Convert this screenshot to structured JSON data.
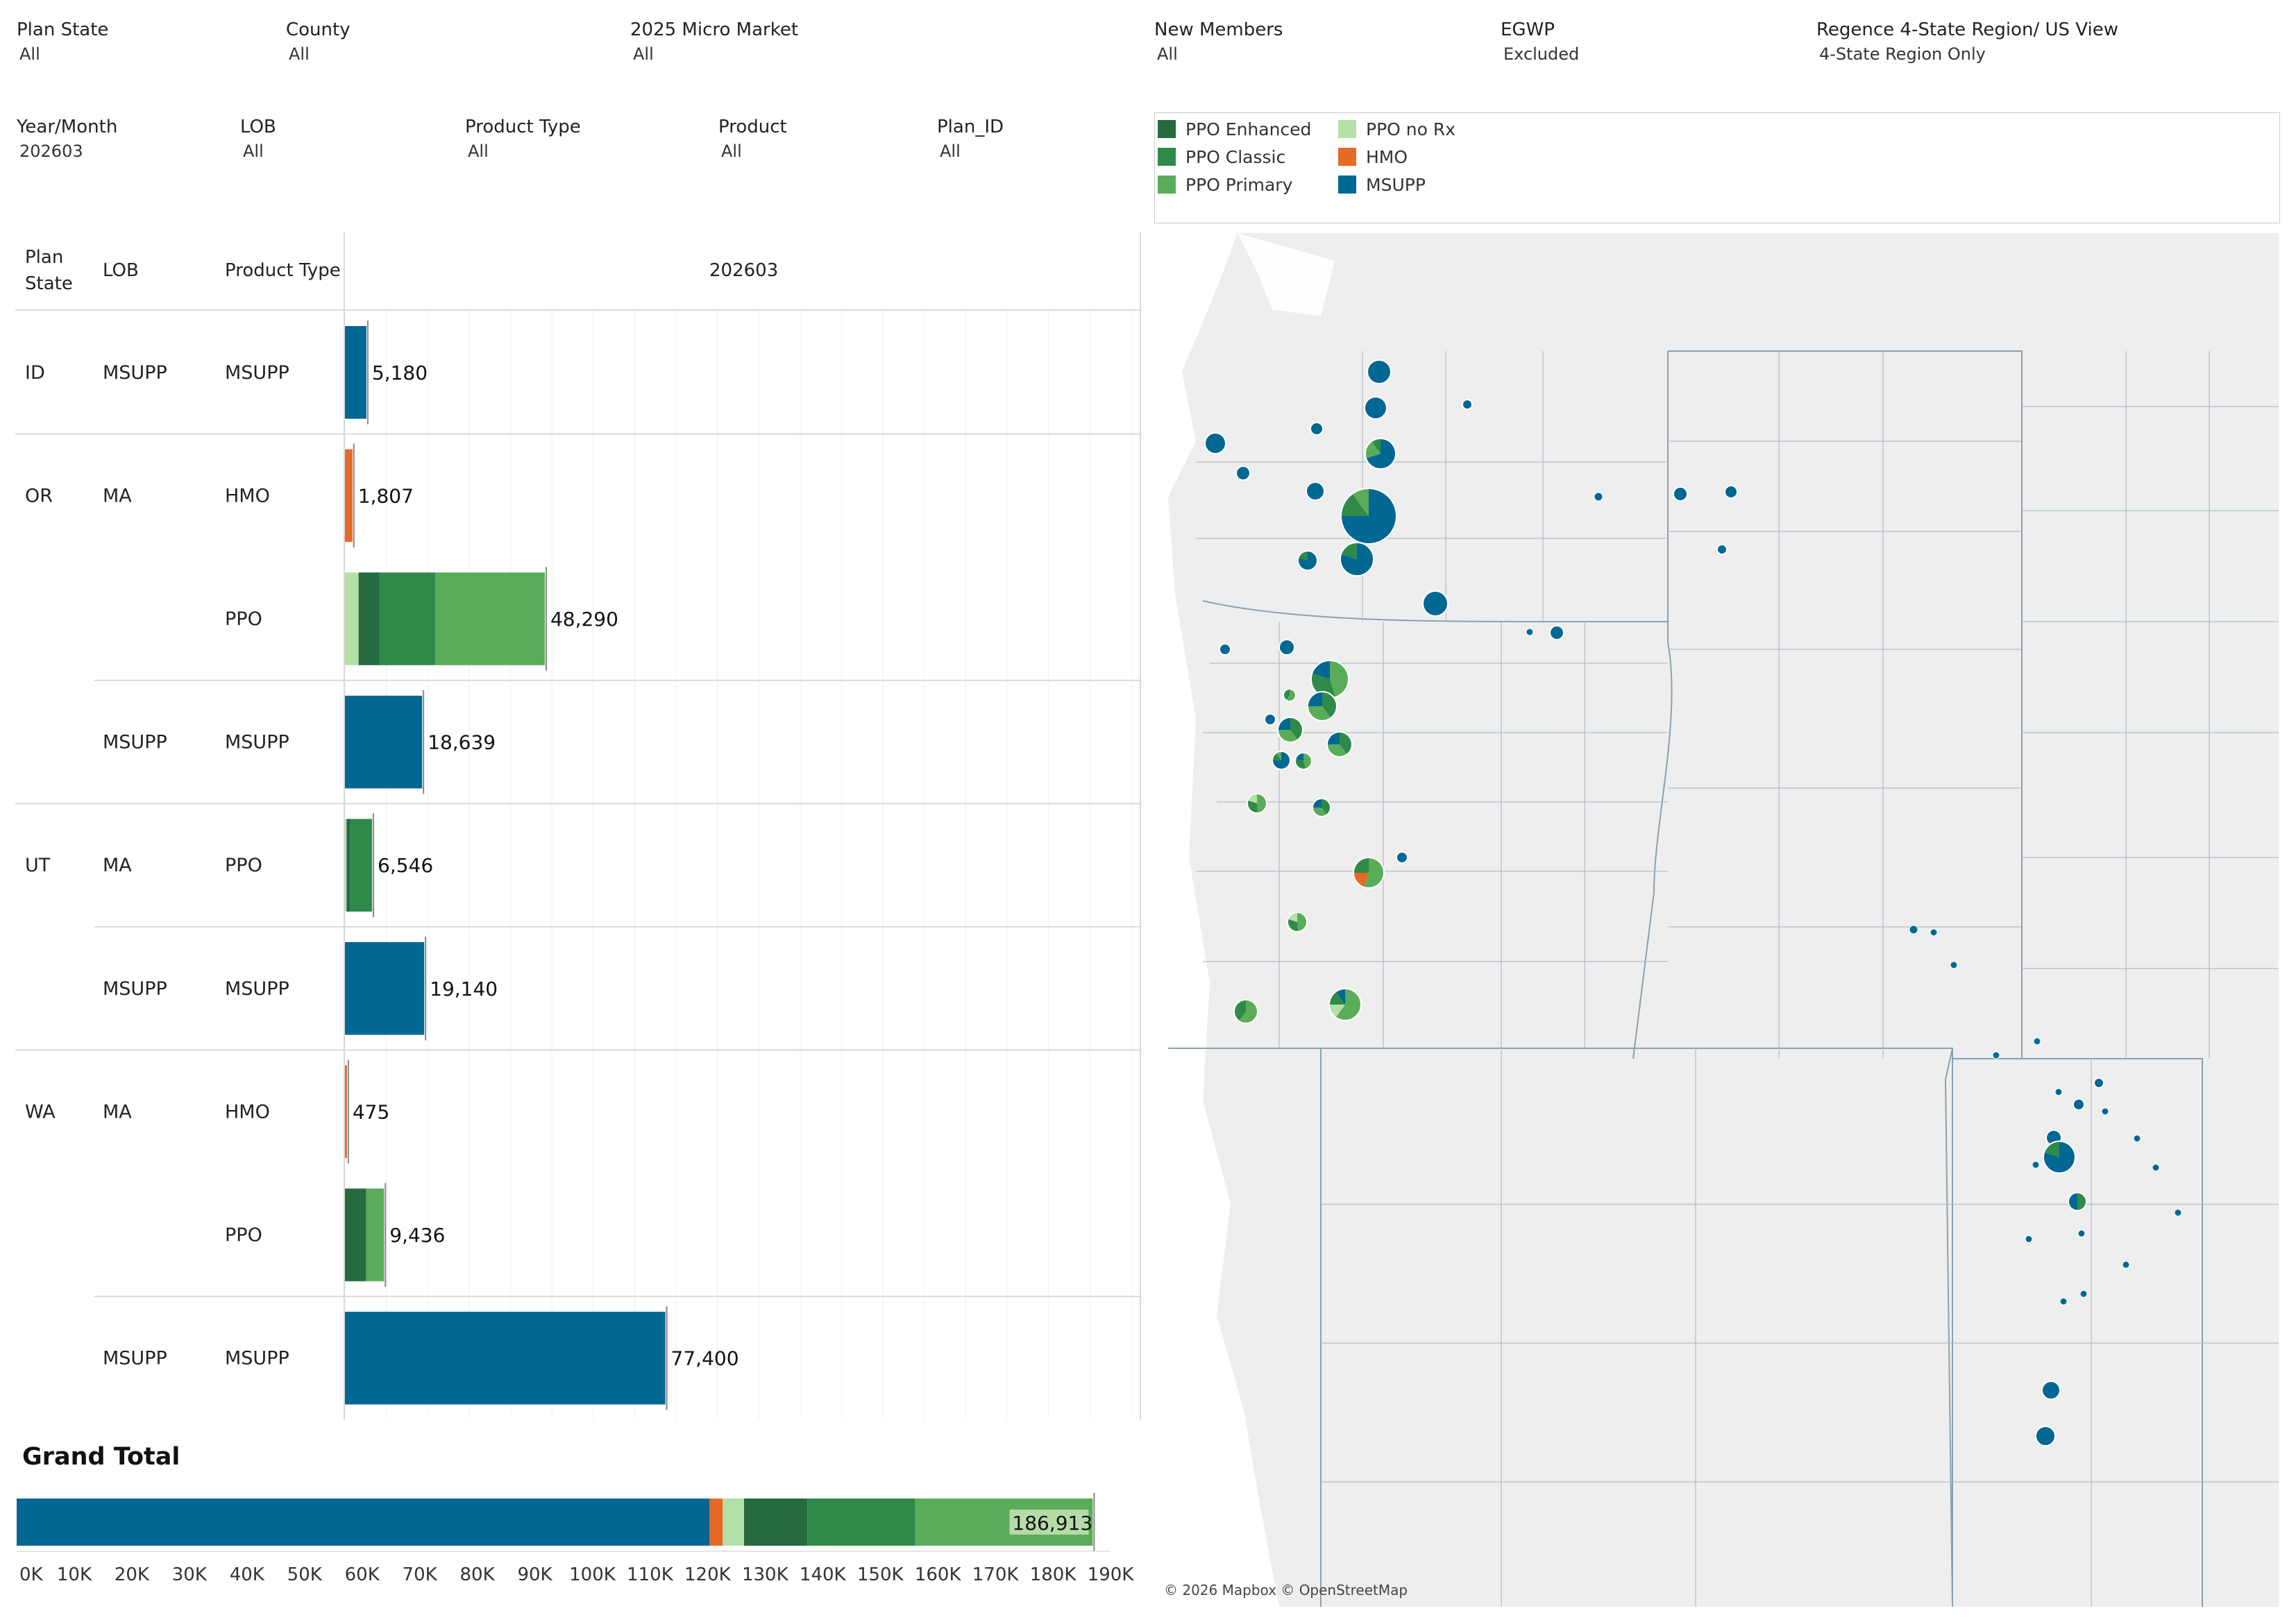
{
  "filters": {
    "row1": [
      {
        "label": "Plan State",
        "value": "All"
      },
      {
        "label": "County",
        "value": "All"
      },
      {
        "label": "2025 Micro Market",
        "value": "All"
      },
      {
        "label": "New Members",
        "value": "All"
      },
      {
        "label": "EGWP",
        "value": "Excluded"
      },
      {
        "label": "Regence 4-State Region/ US View",
        "value": "4-State Region Only"
      }
    ],
    "row2": [
      {
        "label": "Year/Month",
        "value": "202603"
      },
      {
        "label": "LOB",
        "value": "All"
      },
      {
        "label": "Product Type",
        "value": "All"
      },
      {
        "label": "Product",
        "value": "All"
      },
      {
        "label": "Plan_ID",
        "value": "All"
      }
    ]
  },
  "legend": [
    {
      "name": "PPO Enhanced",
      "color": "#256b3f"
    },
    {
      "name": "PPO no Rx",
      "color": "#b3e0a6"
    },
    {
      "name": "PPO Classic",
      "color": "#2f8a4a"
    },
    {
      "name": "HMO",
      "color": "#e46a26"
    },
    {
      "name": "PPO Primary",
      "color": "#5aac58"
    },
    {
      "name": "MSUPP",
      "color": "#006892"
    }
  ],
  "table": {
    "headers": {
      "plan_state": "Plan\nState",
      "lob": "LOB",
      "product_type": "Product Type",
      "column": "202603"
    }
  },
  "grand_total": {
    "label": "Grand Total",
    "value_label": "186,913"
  },
  "map": {
    "attribution": "© 2026 Mapbox © OpenStreetMap"
  },
  "chart_data": {
    "type": "bar",
    "orientation": "horizontal",
    "stacked": true,
    "xlim": [
      0,
      190000
    ],
    "ticks": [
      "0K",
      "10K",
      "20K",
      "30K",
      "40K",
      "50K",
      "60K",
      "70K",
      "80K",
      "90K",
      "100K",
      "110K",
      "120K",
      "130K",
      "140K",
      "150K",
      "160K",
      "170K",
      "180K",
      "190K"
    ],
    "rows": [
      {
        "plan_state": "ID",
        "lob": "MSUPP",
        "product_type": "MSUPP",
        "total": "5,180",
        "segments": [
          {
            "series": "MSUPP",
            "value": 5180
          }
        ]
      },
      {
        "plan_state": "OR",
        "lob": "MA",
        "product_type": "HMO",
        "total": "1,807",
        "segments": [
          {
            "series": "HMO",
            "value": 1807
          }
        ]
      },
      {
        "plan_state": "",
        "lob": "",
        "product_type": "PPO",
        "total": "48,290",
        "segments": [
          {
            "series": "PPO no Rx",
            "value": 3300
          },
          {
            "series": "PPO Enhanced",
            "value": 5000
          },
          {
            "series": "PPO Classic",
            "value": 13500
          },
          {
            "series": "PPO Primary",
            "value": 26490
          }
        ]
      },
      {
        "plan_state": "",
        "lob": "MSUPP",
        "product_type": "MSUPP",
        "total": "18,639",
        "segments": [
          {
            "series": "MSUPP",
            "value": 18639
          }
        ]
      },
      {
        "plan_state": "UT",
        "lob": "MA",
        "product_type": "PPO",
        "total": "6,546",
        "segments": [
          {
            "series": "PPO no Rx",
            "value": 400
          },
          {
            "series": "PPO Enhanced",
            "value": 900
          },
          {
            "series": "PPO Classic",
            "value": 5246
          }
        ]
      },
      {
        "plan_state": "",
        "lob": "MSUPP",
        "product_type": "MSUPP",
        "total": "19,140",
        "segments": [
          {
            "series": "MSUPP",
            "value": 19140
          }
        ]
      },
      {
        "plan_state": "WA",
        "lob": "MA",
        "product_type": "HMO",
        "total": "475",
        "segments": [
          {
            "series": "HMO",
            "value": 475
          }
        ]
      },
      {
        "plan_state": "",
        "lob": "",
        "product_type": "PPO",
        "total": "9,436",
        "segments": [
          {
            "series": "PPO Enhanced",
            "value": 5100
          },
          {
            "series": "PPO Primary",
            "value": 4336
          }
        ]
      },
      {
        "plan_state": "",
        "lob": "MSUPP",
        "product_type": "MSUPP",
        "total": "77,400",
        "segments": [
          {
            "series": "MSUPP",
            "value": 77400
          }
        ]
      }
    ],
    "grand_total_segments": [
      {
        "series": "MSUPP",
        "value": 120359
      },
      {
        "series": "HMO",
        "value": 2282
      },
      {
        "series": "PPO no Rx",
        "value": 3700
      },
      {
        "series": "PPO Enhanced",
        "value": 11000
      },
      {
        "series": "PPO Classic",
        "value": 18746
      },
      {
        "series": "PPO Primary",
        "value": 30826
      }
    ]
  }
}
